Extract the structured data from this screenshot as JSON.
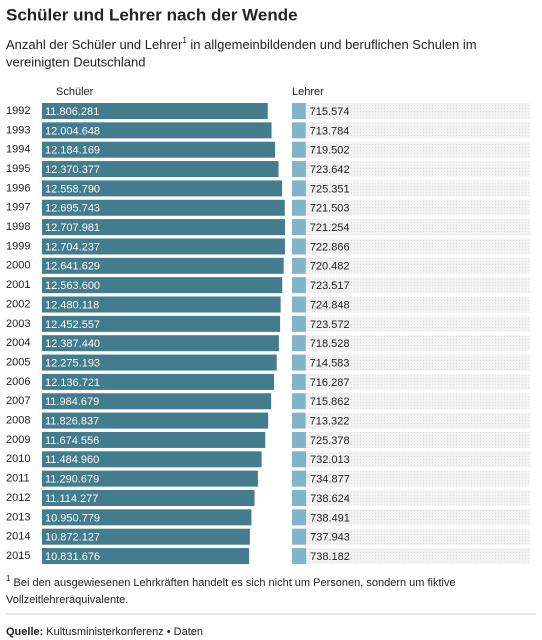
{
  "chart_data": {
    "type": "bar",
    "title": "Schüler und Lehrer nach der Wende",
    "subtitle": "Anzahl der Schüler und Lehrer",
    "footnote_mark": "1",
    "subtitle_rest_line1": " in allgemeinbildenden und beruflichen Schulen im",
    "subtitle_line2": "vereinigten Deutschland",
    "categories": [
      "1992",
      "1993",
      "1994",
      "1995",
      "1996",
      "1997",
      "1998",
      "1999",
      "2000",
      "2001",
      "2002",
      "2003",
      "2004",
      "2005",
      "2006",
      "2007",
      "2008",
      "2009",
      "2010",
      "2011",
      "2012",
      "2013",
      "2014",
      "2015"
    ],
    "series": [
      {
        "name": "Schüler",
        "color": "#437c8c",
        "values": [
          11806281,
          12004648,
          12184169,
          12370377,
          12558790,
          12695743,
          12707981,
          12704237,
          12641629,
          12563600,
          12480118,
          12452557,
          12387440,
          12275193,
          12136721,
          11984679,
          11826837,
          11674556,
          11484960,
          11290679,
          11114277,
          10950779,
          10872127,
          10831676
        ],
        "value_labels": [
          "11.806.281",
          "12.004.648",
          "12.184.169",
          "12.370.377",
          "12.558.790",
          "12.695.743",
          "12.707.981",
          "12.704.237",
          "12.641.629",
          "12.563.600",
          "12.480.118",
          "12.452.557",
          "12.387.440",
          "12.275.193",
          "12.136.721",
          "11.984.679",
          "11.826.837",
          "11.674.556",
          "11.484.960",
          "11.290.679",
          "11.114.277",
          "10.950.779",
          "10.872.127",
          "10.831.676"
        ]
      },
      {
        "name": "Lehrer",
        "color": "#80b4c8",
        "values": [
          715574,
          713784,
          719502,
          723642,
          725351,
          721503,
          721254,
          722866,
          720482,
          723517,
          724848,
          723572,
          718528,
          714583,
          716287,
          715862,
          713322,
          725378,
          732013,
          734877,
          738624,
          738491,
          737943,
          738182
        ],
        "value_labels": [
          "715.574",
          "713.784",
          "719.502",
          "723.642",
          "725.351",
          "721.503",
          "721.254",
          "722.866",
          "720.482",
          "723.517",
          "724.848",
          "723.572",
          "718.528",
          "714.583",
          "716.287",
          "715.862",
          "713.322",
          "725.378",
          "732.013",
          "734.877",
          "738.624",
          "738.491",
          "737.943",
          "738.182"
        ]
      }
    ],
    "footnote_line1": " Bei den ausgewiesenen Lehrkräften handelt es sich nicht um Personen, sondern um fiktive",
    "footnote_line2": "Vollzeitlehreräquivalente.",
    "source_label": "Quelle:",
    "source": "Kultusministerkonferenz • Daten"
  }
}
